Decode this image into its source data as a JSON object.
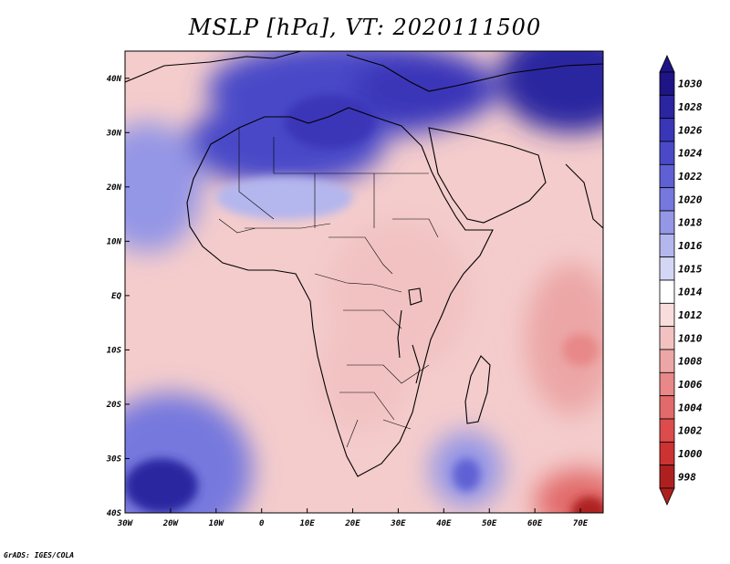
{
  "title": "MSLP [hPa], VT: 2020111500",
  "footer": "GrADS: IGES/COLA",
  "map": {
    "lon_range": [
      -30,
      75
    ],
    "lat_range": [
      -40,
      45
    ],
    "x_ticks": [
      {
        "lon": -30,
        "label": "30W"
      },
      {
        "lon": -20,
        "label": "20W"
      },
      {
        "lon": -10,
        "label": "10W"
      },
      {
        "lon": 0,
        "label": "0"
      },
      {
        "lon": 10,
        "label": "10E"
      },
      {
        "lon": 20,
        "label": "20E"
      },
      {
        "lon": 30,
        "label": "30E"
      },
      {
        "lon": 40,
        "label": "40E"
      },
      {
        "lon": 50,
        "label": "50E"
      },
      {
        "lon": 60,
        "label": "60E"
      },
      {
        "lon": 70,
        "label": "70E"
      }
    ],
    "y_ticks": [
      {
        "lat": 40,
        "label": "40N"
      },
      {
        "lat": 30,
        "label": "30N"
      },
      {
        "lat": 20,
        "label": "20N"
      },
      {
        "lat": 10,
        "label": "10N"
      },
      {
        "lat": 0,
        "label": "EQ"
      },
      {
        "lat": -10,
        "label": "10S"
      },
      {
        "lat": -20,
        "label": "20S"
      },
      {
        "lat": -30,
        "label": "30S"
      },
      {
        "lat": -40,
        "label": "40S"
      }
    ]
  },
  "colorbar": {
    "levels": [
      {
        "label": "1030",
        "color": "#1e1486"
      },
      {
        "label": "1028",
        "color": "#2c25a0"
      },
      {
        "label": "1026",
        "color": "#3a36b8"
      },
      {
        "label": "1024",
        "color": "#4a4ac8"
      },
      {
        "label": "1022",
        "color": "#5f60d4"
      },
      {
        "label": "1020",
        "color": "#7678de"
      },
      {
        "label": "1018",
        "color": "#9496e6"
      },
      {
        "label": "1016",
        "color": "#b4b6ee"
      },
      {
        "label": "1015",
        "color": "#d4d6f6"
      },
      {
        "label": "1014",
        "color": "#ffffff"
      },
      {
        "label": "1012",
        "color": "#f9dcdc"
      },
      {
        "label": "1010",
        "color": "#f2c2c2"
      },
      {
        "label": "1008",
        "color": "#eca6a6"
      },
      {
        "label": "1006",
        "color": "#e88888"
      },
      {
        "label": "1004",
        "color": "#e26a6a"
      },
      {
        "label": "1002",
        "color": "#dc4c4c"
      },
      {
        "label": "1000",
        "color": "#cc3232"
      },
      {
        "label": "998",
        "color": "#ae2020"
      }
    ]
  },
  "pressure_fields": [
    {
      "name": "europe-high-ridge",
      "lon": 20,
      "lat": 38,
      "rlon": 32,
      "rlat": 9,
      "level": 1024
    },
    {
      "name": "asia-high",
      "lon": 68,
      "lat": 40,
      "rlon": 16,
      "rlat": 10,
      "level": 1028
    },
    {
      "name": "sahara-high",
      "lon": 5,
      "lat": 28,
      "rlon": 22,
      "rlat": 8,
      "level": 1024
    },
    {
      "name": "libya-high-core",
      "lon": 15,
      "lat": 32,
      "rlon": 10,
      "rlat": 5,
      "level": 1026
    },
    {
      "name": "atlantic-north-high",
      "lon": -25,
      "lat": 20,
      "rlon": 12,
      "rlat": 12,
      "level": 1018
    },
    {
      "name": "sahel-ridge",
      "lon": 5,
      "lat": 18,
      "rlon": 15,
      "rlat": 4,
      "level": 1016
    },
    {
      "name": "east-africa-trough",
      "lon": 30,
      "lat": 0,
      "rlon": 16,
      "rlat": 14,
      "level": 1010
    },
    {
      "name": "central-africa-low",
      "lon": 22,
      "lat": -15,
      "rlon": 10,
      "rlat": 10,
      "level": 1010
    },
    {
      "name": "indian-ocean-low-east",
      "lon": 68,
      "lat": -8,
      "rlon": 10,
      "rlat": 14,
      "level": 1008
    },
    {
      "name": "indian-ocean-low-core",
      "lon": 70,
      "lat": -10,
      "rlon": 4,
      "rlat": 3,
      "level": 1006
    },
    {
      "name": "south-indian-low",
      "lon": 70,
      "lat": -38,
      "rlon": 10,
      "rlat": 6,
      "level": 1004
    },
    {
      "name": "south-indian-low-core",
      "lon": 72,
      "lat": -40,
      "rlon": 4,
      "rlat": 3,
      "level": 998
    },
    {
      "name": "south-atlantic-high",
      "lon": -20,
      "lat": -32,
      "rlon": 18,
      "rlat": 14,
      "level": 1020
    },
    {
      "name": "south-atlantic-high-core",
      "lon": -22,
      "lat": -35,
      "rlon": 8,
      "rlat": 5,
      "level": 1028
    },
    {
      "name": "agulhas-ridge",
      "lon": 45,
      "lat": -32,
      "rlon": 8,
      "rlat": 7,
      "level": 1018
    },
    {
      "name": "agulhas-core",
      "lon": 45,
      "lat": -33,
      "rlon": 3,
      "rlat": 3,
      "level": 1022
    },
    {
      "name": "mediterranean-high",
      "lon": 35,
      "lat": 38,
      "rlon": 15,
      "rlat": 6,
      "level": 1026
    }
  ]
}
